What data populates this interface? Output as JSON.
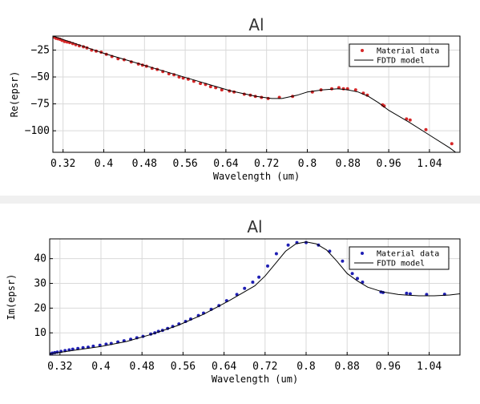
{
  "chart_data": [
    {
      "type": "line",
      "title": "Al",
      "xlabel": "Wavelength (um)",
      "ylabel": "Re(epsr)",
      "xlim": [
        0.3,
        1.1
      ],
      "ylim": [
        -120,
        -12
      ],
      "xticks": [
        0.32,
        0.4,
        0.48,
        0.56,
        0.64,
        0.72,
        0.8,
        0.88,
        0.96,
        1.04
      ],
      "xticklabels": [
        "0.32",
        "0.4",
        "0.48",
        "0.56",
        "0.64",
        "0.72",
        "0.8",
        "0.88",
        "0.96",
        "1.04"
      ],
      "yticks": [
        -25,
        -50,
        -75,
        -100
      ],
      "yticklabels": [
        "−25",
        "−50",
        "−75",
        "−100"
      ],
      "grid": true,
      "legend_position": "top-right",
      "legend": [
        "Material data",
        "FDTD model"
      ],
      "marker_color": "#d62728",
      "line_color": "#000000",
      "series": [
        {
          "name": "Material data",
          "kind": "scatter",
          "x": [
            0.302,
            0.306,
            0.31,
            0.314,
            0.318,
            0.323,
            0.328,
            0.333,
            0.339,
            0.345,
            0.352,
            0.36,
            0.367,
            0.376,
            0.385,
            0.395,
            0.405,
            0.416,
            0.428,
            0.44,
            0.454,
            0.468,
            0.476,
            0.484,
            0.495,
            0.505,
            0.516,
            0.528,
            0.538,
            0.548,
            0.556,
            0.566,
            0.577,
            0.59,
            0.6,
            0.61,
            0.62,
            0.632,
            0.647,
            0.656,
            0.676,
            0.688,
            0.698,
            0.71,
            0.723,
            0.745,
            0.771,
            0.81,
            0.827,
            0.848,
            0.862,
            0.871,
            0.879,
            0.895,
            0.91,
            0.918,
            0.948,
            0.951,
            0.995,
            1.002,
            1.033,
            1.084
          ],
          "y": [
            -13,
            -14,
            -14.5,
            -15,
            -16,
            -17,
            -17.5,
            -18,
            -19,
            -20,
            -21,
            -22,
            -23,
            -25,
            -26,
            -27,
            -29,
            -31,
            -33,
            -34,
            -36,
            -38,
            -39,
            -40,
            -42,
            -43,
            -45,
            -47,
            -48,
            -50,
            -51,
            -52,
            -54,
            -56,
            -57,
            -59,
            -60,
            -62,
            -63,
            -64,
            -66,
            -67,
            -68,
            -69,
            -70,
            -69,
            -68,
            -64,
            -62,
            -61,
            -60,
            -61,
            -61,
            -62,
            -65,
            -67,
            -76,
            -77,
            -89,
            -90,
            -99,
            -112
          ]
        },
        {
          "name": "FDTD model",
          "kind": "line",
          "x": [
            0.3,
            0.35,
            0.4,
            0.45,
            0.5,
            0.55,
            0.6,
            0.65,
            0.7,
            0.73,
            0.75,
            0.78,
            0.8,
            0.83,
            0.86,
            0.88,
            0.9,
            0.92,
            0.94,
            0.96,
            1.0,
            1.04,
            1.08,
            1.1
          ],
          "y": [
            -12,
            -20,
            -28,
            -35,
            -42,
            -49,
            -56,
            -63,
            -68,
            -70,
            -70,
            -67,
            -64,
            -62,
            -61,
            -62,
            -64,
            -68,
            -74,
            -81,
            -92,
            -104,
            -116,
            -123
          ]
        }
      ]
    },
    {
      "type": "line",
      "title": "Al",
      "xlabel": "Wavelength (um)",
      "ylabel": "Im(epsr)",
      "xlim": [
        0.3,
        1.1
      ],
      "ylim": [
        1,
        48
      ],
      "xticks": [
        0.32,
        0.4,
        0.48,
        0.56,
        0.64,
        0.72,
        0.8,
        0.88,
        0.96,
        1.04
      ],
      "xticklabels": [
        "0.32",
        "0.4",
        "0.48",
        "0.56",
        "0.64",
        "0.72",
        "0.8",
        "0.88",
        "0.96",
        "1.04"
      ],
      "yticks": [
        10,
        20,
        30,
        40
      ],
      "yticklabels": [
        "10",
        "20",
        "30",
        "40"
      ],
      "grid": true,
      "legend_position": "top-right",
      "legend": [
        "Material data",
        "FDTD model"
      ],
      "marker_color": "#1f1fb4",
      "line_color": "#000000",
      "series": [
        {
          "name": "Material data",
          "kind": "scatter",
          "x": [
            0.3,
            0.305,
            0.31,
            0.315,
            0.322,
            0.33,
            0.338,
            0.345,
            0.355,
            0.365,
            0.375,
            0.385,
            0.398,
            0.41,
            0.42,
            0.433,
            0.445,
            0.458,
            0.47,
            0.482,
            0.497,
            0.505,
            0.512,
            0.52,
            0.53,
            0.54,
            0.552,
            0.565,
            0.575,
            0.59,
            0.6,
            0.615,
            0.63,
            0.645,
            0.665,
            0.68,
            0.696,
            0.708,
            0.725,
            0.742,
            0.765,
            0.782,
            0.8,
            0.824,
            0.846,
            0.871,
            0.89,
            0.9,
            0.91,
            0.946,
            0.95,
            0.996,
            1.003,
            1.035,
            1.07
          ],
          "y": [
            1.5,
            1.8,
            2,
            2.2,
            2.5,
            2.8,
            3.1,
            3.4,
            3.7,
            4,
            4.2,
            4.6,
            5,
            5.4,
            5.7,
            6.3,
            6.8,
            7.4,
            8,
            8.6,
            9.5,
            10,
            10.6,
            11,
            11.8,
            12.6,
            13.6,
            14.6,
            15.6,
            17,
            18,
            19.5,
            21,
            23,
            25.5,
            28,
            30.5,
            32.5,
            37,
            42,
            45.5,
            46.5,
            46.5,
            45.5,
            43,
            39,
            34,
            32,
            30.5,
            26.5,
            26.3,
            26,
            25.8,
            25.5,
            25.6
          ]
        },
        {
          "name": "FDTD model",
          "kind": "line",
          "x": [
            0.3,
            0.35,
            0.4,
            0.45,
            0.5,
            0.55,
            0.6,
            0.65,
            0.7,
            0.72,
            0.74,
            0.76,
            0.78,
            0.8,
            0.82,
            0.84,
            0.86,
            0.88,
            0.9,
            0.92,
            0.95,
            0.98,
            1.0,
            1.02,
            1.05,
            1.08,
            1.1
          ],
          "y": [
            1.5,
            3,
            4.5,
            6.5,
            9.5,
            13,
            17.5,
            23,
            29,
            33,
            38,
            43,
            46,
            46.8,
            46,
            43.5,
            39,
            34,
            31,
            28.5,
            26.5,
            25.5,
            25.2,
            25,
            25,
            25.3,
            25.8
          ]
        }
      ]
    }
  ]
}
